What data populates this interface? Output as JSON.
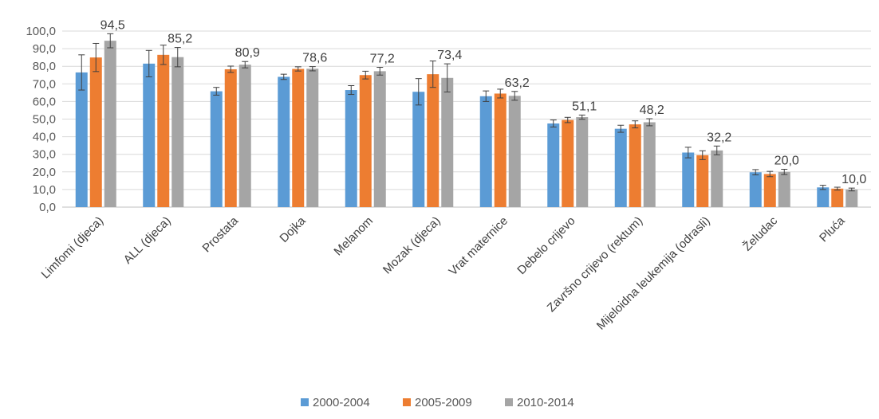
{
  "chart_data": {
    "type": "bar",
    "title": "",
    "xlabel": "",
    "ylabel": "",
    "ylim": [
      0,
      100
    ],
    "y_ticks": [
      "0,0",
      "10,0",
      "20,0",
      "30,0",
      "40,0",
      "50,0",
      "60,0",
      "70,0",
      "80,0",
      "90,0",
      "100,0"
    ],
    "grid": true,
    "legend_position": "bottom",
    "categories": [
      "Limfomi (djeca)",
      "ALL (djeca)",
      "Prostata",
      "Dojka",
      "Melanom",
      "Mozak (djeca)",
      "Vrat maternice",
      "Debelo crijevo",
      "Završno crijevo (rektum)",
      "Mijeloidna leukemija (odrasli)",
      "Želudac",
      "Pluća"
    ],
    "series": [
      {
        "name": "2000-2004",
        "color": "#5b9bd5",
        "values": [
          76.5,
          81.5,
          65.8,
          74.0,
          66.5,
          65.5,
          63.0,
          47.5,
          44.5,
          31.0,
          19.8,
          11.2
        ],
        "error": [
          10,
          7.5,
          2.2,
          1.5,
          2.5,
          7.5,
          3,
          2,
          2,
          3,
          1.5,
          1.2
        ]
      },
      {
        "name": "2005-2009",
        "color": "#ed7d31",
        "values": [
          85.0,
          86.5,
          78.3,
          78.5,
          75.0,
          75.5,
          64.5,
          49.5,
          47.0,
          29.5,
          18.8,
          10.5
        ],
        "error": [
          8,
          5.5,
          1.8,
          1.2,
          2.2,
          7.5,
          2.5,
          1.5,
          2,
          2.5,
          1.5,
          0.8
        ]
      },
      {
        "name": "2010-2014",
        "color": "#a5a5a5",
        "values": [
          94.5,
          85.2,
          80.9,
          78.6,
          77.2,
          73.4,
          63.2,
          51.1,
          48.2,
          32.2,
          20.0,
          10.0
        ],
        "error": [
          4,
          5.5,
          1.8,
          1.2,
          2.2,
          8,
          2.5,
          1.2,
          2,
          2.5,
          1.5,
          0.8
        ]
      }
    ],
    "data_labels": [
      "94,5",
      "85,2",
      "80,9",
      "78,6",
      "77,2",
      "73,4",
      "63,2",
      "51,1",
      "48,2",
      "32,2",
      "20,0",
      "10,0"
    ]
  }
}
